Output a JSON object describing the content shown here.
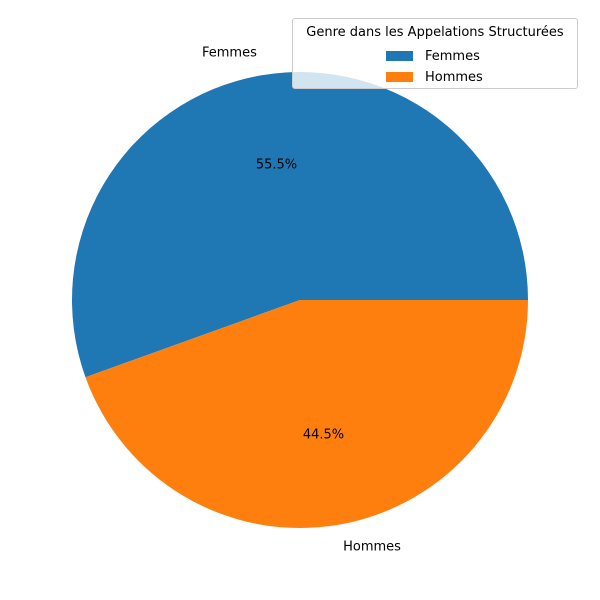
{
  "chart_data": {
    "type": "pie",
    "categories": [
      "Femmes",
      "Hommes"
    ],
    "values": [
      55.5,
      44.5
    ],
    "value_labels": [
      "55.5%",
      "44.5%"
    ],
    "colors": [
      "#1f77b4",
      "#ff7f0e"
    ],
    "legend": {
      "title": "Genre dans les Appelations Structurées",
      "entries": [
        "Femmes",
        "Hommes"
      ],
      "placement": "top-right"
    }
  }
}
